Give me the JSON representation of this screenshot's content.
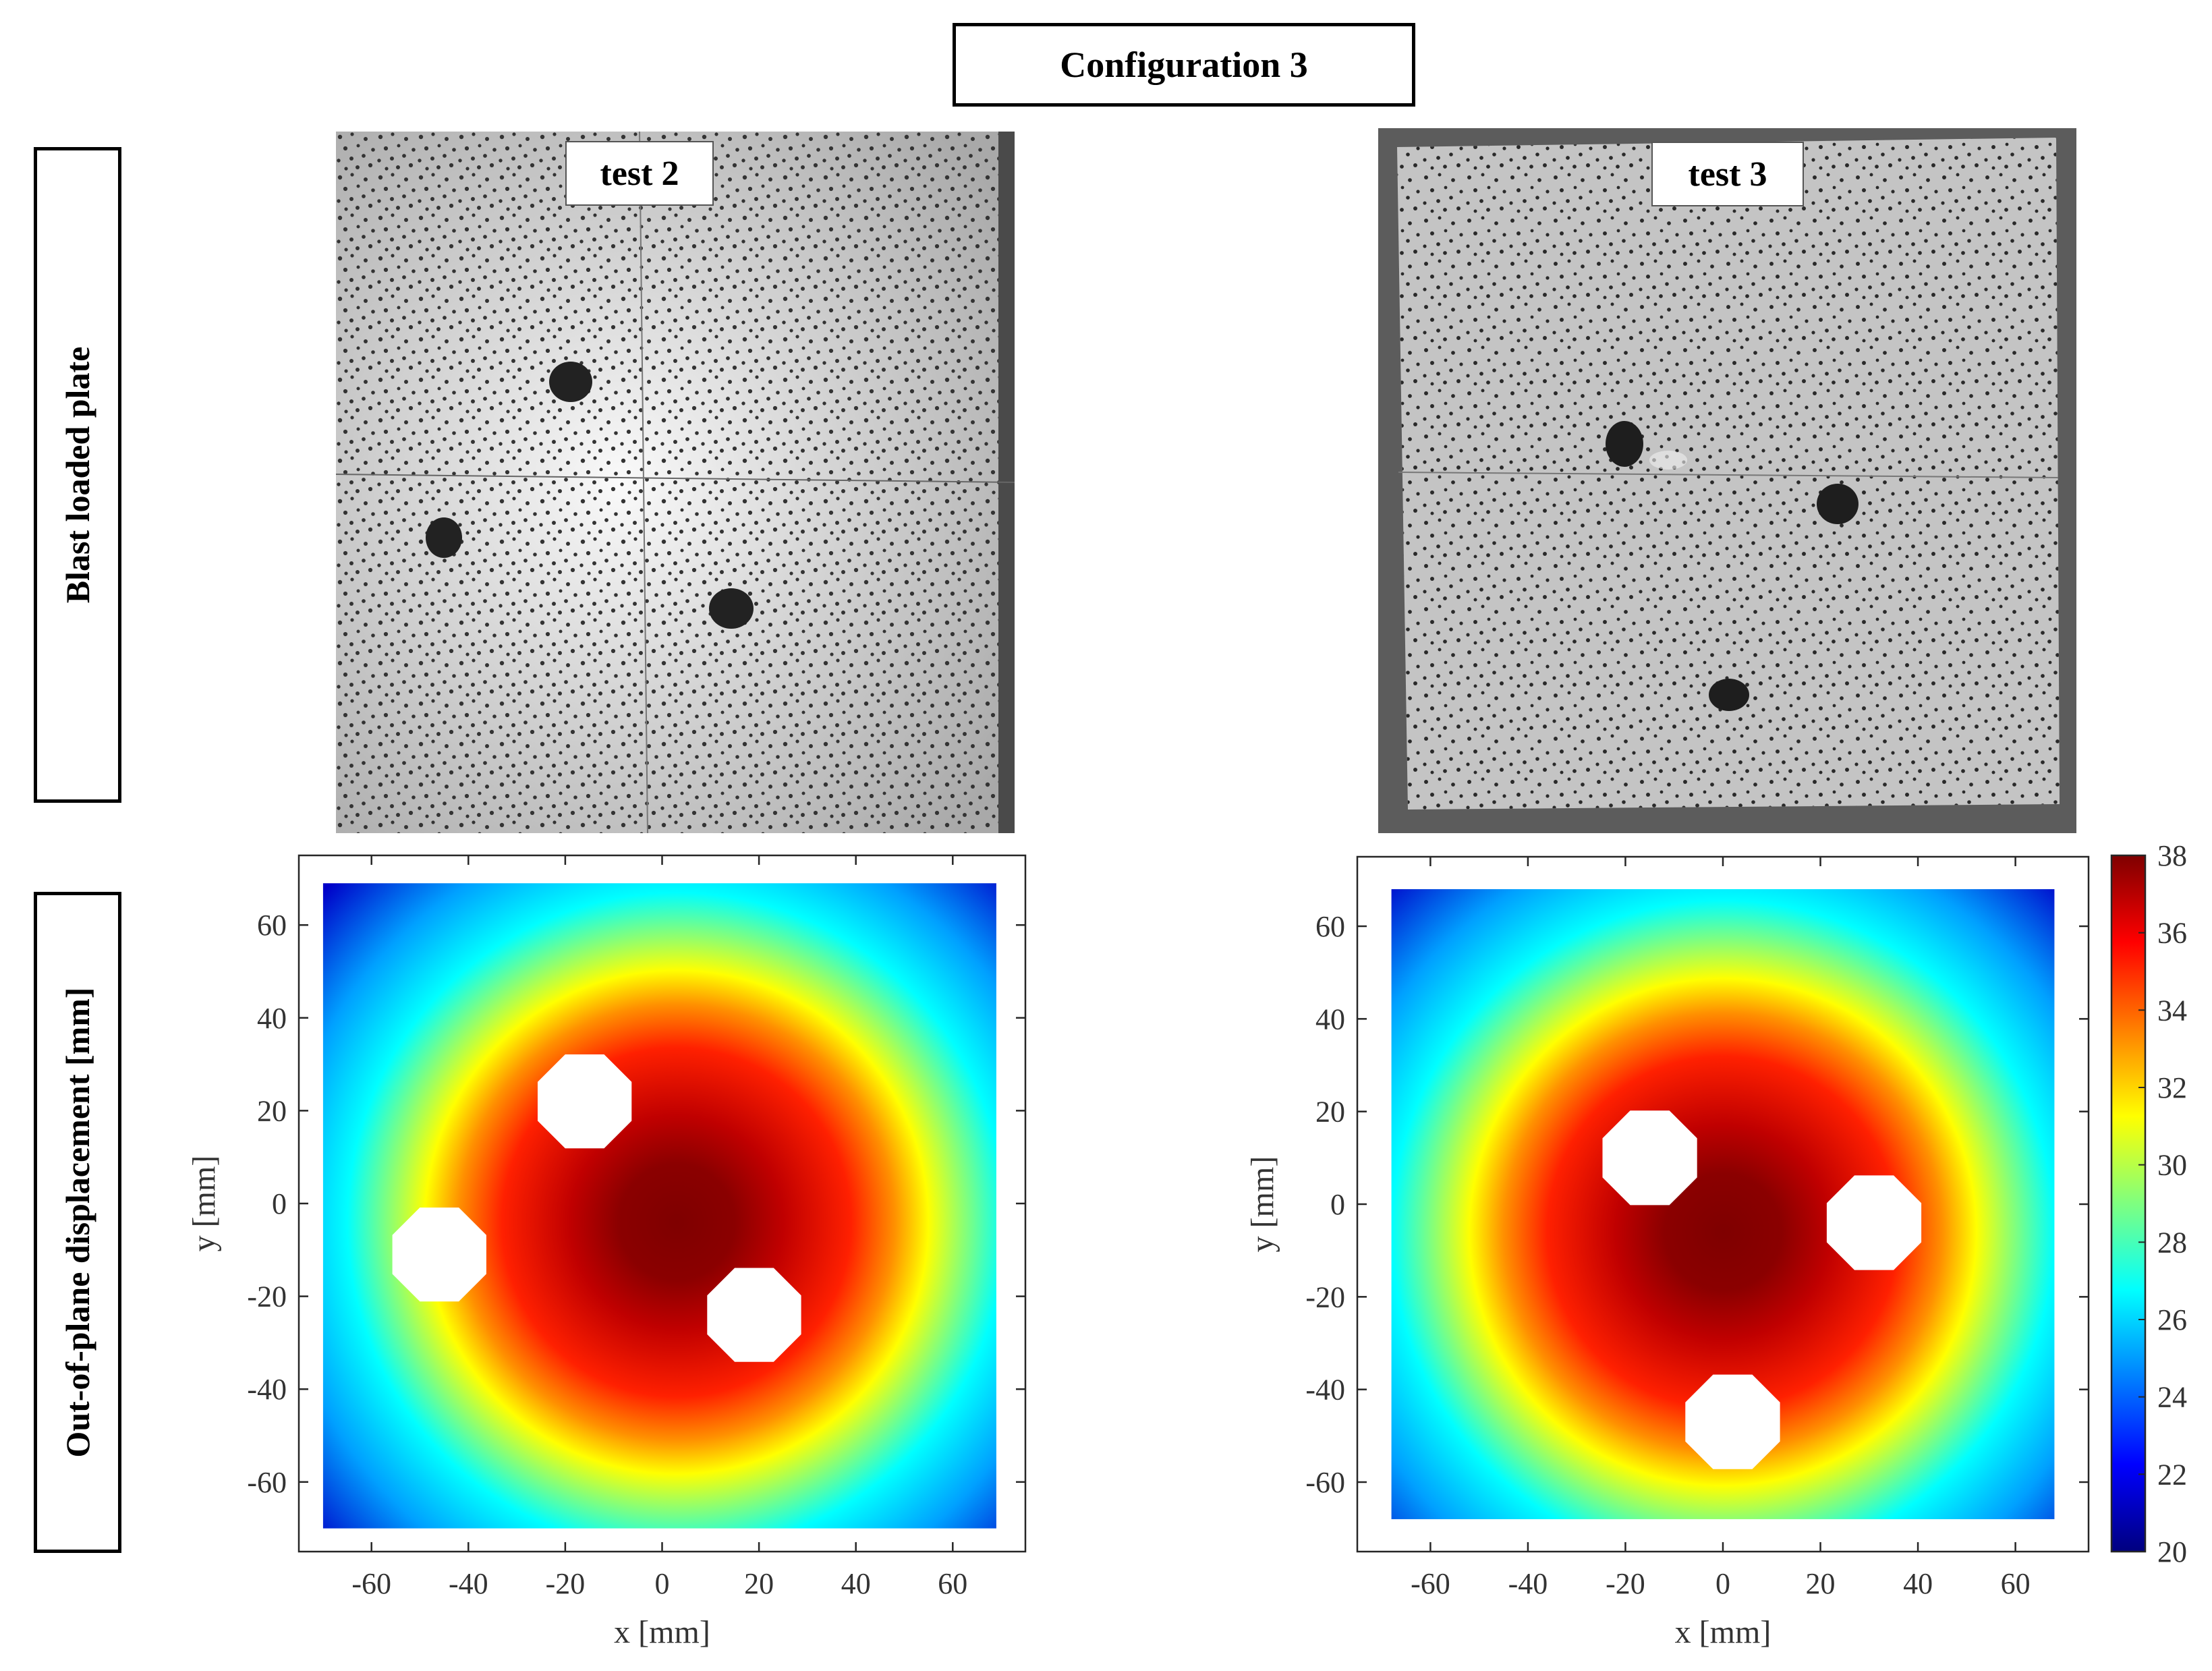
{
  "figure": {
    "title": "Configuration 3",
    "row_labels": [
      "Blast loaded plate",
      "Out-of-plane displacement [mm]"
    ]
  },
  "photos": [
    {
      "label": "test 2"
    },
    {
      "label": "test 3"
    }
  ],
  "colormap": "jet",
  "chart_data": [
    {
      "type": "heatmap",
      "title": "",
      "xlabel": "x [mm]",
      "ylabel": "y [mm]",
      "xlim": [
        -75,
        75
      ],
      "ylim": [
        -75,
        75
      ],
      "xticks": [
        -60,
        -40,
        -20,
        0,
        20,
        40,
        60
      ],
      "yticks": [
        -60,
        -40,
        -20,
        0,
        20,
        40,
        60
      ],
      "colorbar": {
        "range": [
          20,
          38
        ],
        "ticks": [
          20,
          22,
          24,
          26,
          28,
          30,
          32,
          34,
          36,
          38
        ]
      },
      "plate_extent": {
        "x": [
          -70,
          69
        ],
        "y": [
          -70,
          69
        ]
      },
      "peak": {
        "x": 3,
        "y": -4,
        "value": 38
      },
      "holes": [
        {
          "x": -16,
          "y": 22
        },
        {
          "x": -46,
          "y": -11
        },
        {
          "x": 19,
          "y": -24
        }
      ]
    },
    {
      "type": "heatmap",
      "title": "",
      "xlabel": "x [mm]",
      "ylabel": "y [mm]",
      "xlim": [
        -75,
        75
      ],
      "ylim": [
        -75,
        75
      ],
      "xticks": [
        -60,
        -40,
        -20,
        0,
        20,
        40,
        60
      ],
      "yticks": [
        -60,
        -40,
        -20,
        0,
        20,
        40,
        60
      ],
      "colorbar": {
        "range": [
          20,
          38
        ],
        "ticks": [
          20,
          22,
          24,
          26,
          28,
          30,
          32,
          34,
          36,
          38
        ]
      },
      "plate_extent": {
        "x": [
          -68,
          68
        ],
        "y": [
          -68,
          68
        ]
      },
      "peak": {
        "x": 0,
        "y": -6,
        "value": 38
      },
      "holes": [
        {
          "x": -15,
          "y": 10
        },
        {
          "x": 31,
          "y": -4
        },
        {
          "x": 2,
          "y": -47
        }
      ]
    }
  ]
}
